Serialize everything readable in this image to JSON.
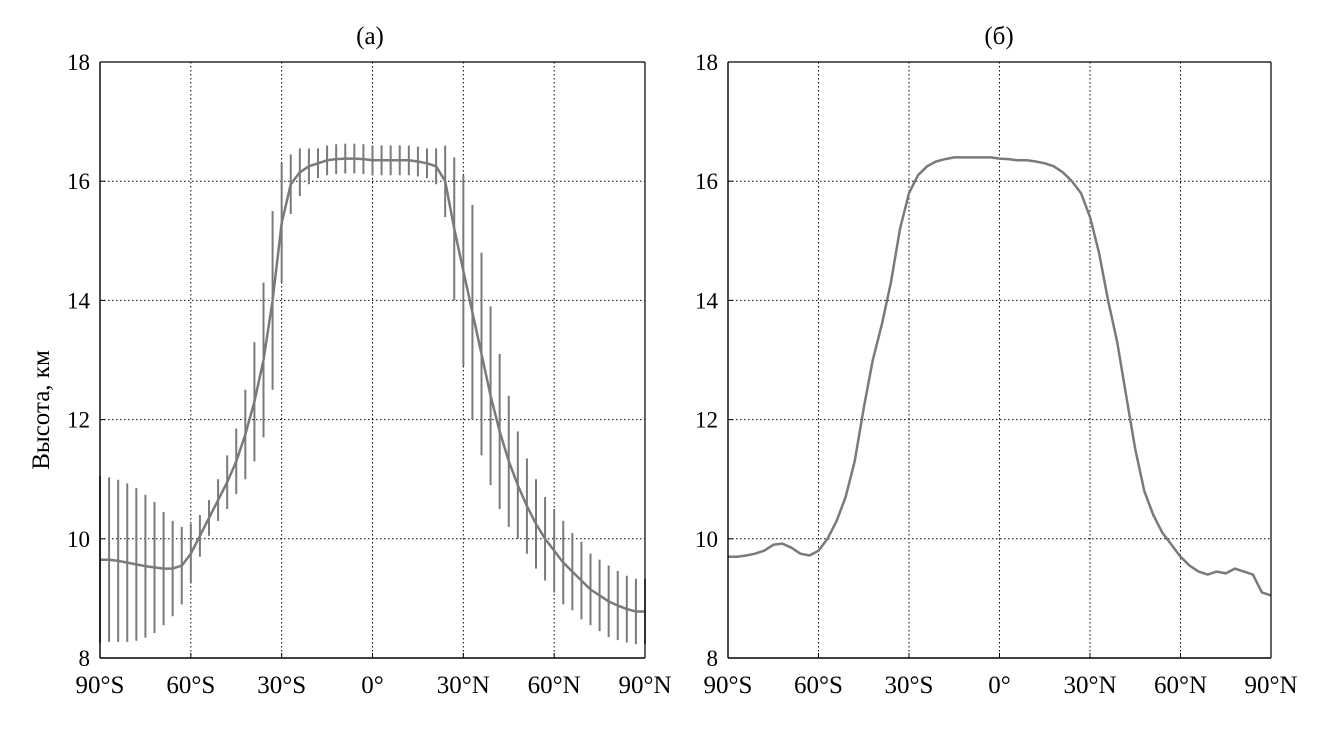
{
  "ylabel": "Высота, км",
  "colors": {
    "series": "#7a7a7a",
    "axis": "#000000",
    "grid": "#000000"
  },
  "chart_data": [
    {
      "type": "line",
      "title": "(а)",
      "xlabel": "",
      "ylabel": "Высота, км",
      "xlim": [
        -90,
        90
      ],
      "ylim": [
        8,
        18
      ],
      "grid": "dotted, at 30° and 10/12/14/16 km",
      "x_tick_values": [
        -90,
        -60,
        -30,
        0,
        30,
        60,
        90
      ],
      "x_tick_labels": [
        "90°S",
        "60°S",
        "30°S",
        "0°",
        "30°N",
        "60°N",
        "90°N"
      ],
      "y_tick_values": [
        8,
        10,
        12,
        14,
        16,
        18
      ],
      "y_tick_labels": [
        "8",
        "10",
        "12",
        "14",
        "16",
        "18"
      ],
      "series": [
        {
          "x": [
            -90,
            -87,
            -84,
            -81,
            -78,
            -75,
            -72,
            -69,
            -66,
            -63,
            -60,
            -57,
            -54,
            -51,
            -48,
            -45,
            -42,
            -39,
            -36,
            -33,
            -30,
            -27,
            -24,
            -21,
            -18,
            -15,
            -12,
            -9,
            -6,
            -3,
            0,
            3,
            6,
            9,
            12,
            15,
            18,
            21,
            24,
            27,
            30,
            33,
            36,
            39,
            42,
            45,
            48,
            51,
            54,
            57,
            60,
            63,
            66,
            69,
            72,
            75,
            78,
            81,
            84,
            87,
            90
          ],
          "y": [
            9.65,
            9.65,
            9.63,
            9.6,
            9.57,
            9.54,
            9.52,
            9.5,
            9.5,
            9.55,
            9.75,
            10.05,
            10.35,
            10.65,
            10.95,
            11.3,
            11.75,
            12.3,
            13.0,
            14.0,
            15.3,
            15.95,
            16.15,
            16.25,
            16.3,
            16.35,
            16.37,
            16.38,
            16.38,
            16.37,
            16.35,
            16.35,
            16.35,
            16.35,
            16.35,
            16.33,
            16.3,
            16.25,
            16.0,
            15.2,
            14.5,
            13.8,
            13.1,
            12.4,
            11.8,
            11.3,
            10.9,
            10.55,
            10.25,
            10.0,
            9.8,
            9.6,
            9.45,
            9.3,
            9.15,
            9.05,
            8.95,
            8.88,
            8.82,
            8.78,
            8.78
          ],
          "err": [
            1.4,
            1.38,
            1.36,
            1.33,
            1.28,
            1.2,
            1.1,
            0.95,
            0.8,
            0.65,
            0.5,
            0.35,
            0.3,
            0.35,
            0.45,
            0.55,
            0.75,
            1.0,
            1.3,
            1.5,
            1.0,
            0.5,
            0.4,
            0.3,
            0.25,
            0.25,
            0.25,
            0.25,
            0.25,
            0.25,
            0.25,
            0.25,
            0.25,
            0.25,
            0.25,
            0.25,
            0.25,
            0.3,
            0.6,
            1.2,
            1.6,
            1.8,
            1.7,
            1.5,
            1.3,
            1.1,
            0.9,
            0.8,
            0.75,
            0.7,
            0.7,
            0.7,
            0.65,
            0.65,
            0.6,
            0.6,
            0.6,
            0.58,
            0.56,
            0.55,
            0.55
          ]
        }
      ]
    },
    {
      "type": "line",
      "title": "(б)",
      "xlabel": "",
      "ylabel": "",
      "xlim": [
        -90,
        90
      ],
      "ylim": [
        8,
        18
      ],
      "grid": "dotted, at 30° and 10/12/14/16 km",
      "x_tick_values": [
        -90,
        -60,
        -30,
        0,
        30,
        60,
        90
      ],
      "x_tick_labels": [
        "90°S",
        "60°S",
        "30°S",
        "0°",
        "30°N",
        "60°N",
        "90°N"
      ],
      "y_tick_values": [
        8,
        10,
        12,
        14,
        16,
        18
      ],
      "y_tick_labels": [
        "8",
        "10",
        "12",
        "14",
        "16",
        "18"
      ],
      "series": [
        {
          "x": [
            -90,
            -87,
            -84,
            -81,
            -78,
            -75,
            -72,
            -69,
            -66,
            -63,
            -60,
            -57,
            -54,
            -51,
            -48,
            -45,
            -42,
            -39,
            -36,
            -33,
            -30,
            -27,
            -24,
            -21,
            -18,
            -15,
            -12,
            -9,
            -6,
            -3,
            0,
            3,
            6,
            9,
            12,
            15,
            18,
            21,
            24,
            27,
            30,
            33,
            36,
            39,
            42,
            45,
            48,
            51,
            54,
            57,
            60,
            63,
            66,
            69,
            72,
            75,
            78,
            81,
            84,
            87,
            90
          ],
          "y": [
            9.7,
            9.7,
            9.72,
            9.75,
            9.8,
            9.9,
            9.92,
            9.85,
            9.75,
            9.72,
            9.8,
            10.0,
            10.3,
            10.7,
            11.3,
            12.2,
            13.0,
            13.6,
            14.3,
            15.2,
            15.8,
            16.1,
            16.25,
            16.33,
            16.37,
            16.4,
            16.4,
            16.4,
            16.4,
            16.4,
            16.38,
            16.37,
            16.35,
            16.35,
            16.33,
            16.3,
            16.25,
            16.15,
            16.0,
            15.8,
            15.4,
            14.8,
            14.0,
            13.3,
            12.4,
            11.5,
            10.8,
            10.4,
            10.1,
            9.9,
            9.7,
            9.55,
            9.45,
            9.4,
            9.45,
            9.42,
            9.5,
            9.45,
            9.4,
            9.1,
            9.05
          ]
        }
      ]
    }
  ]
}
